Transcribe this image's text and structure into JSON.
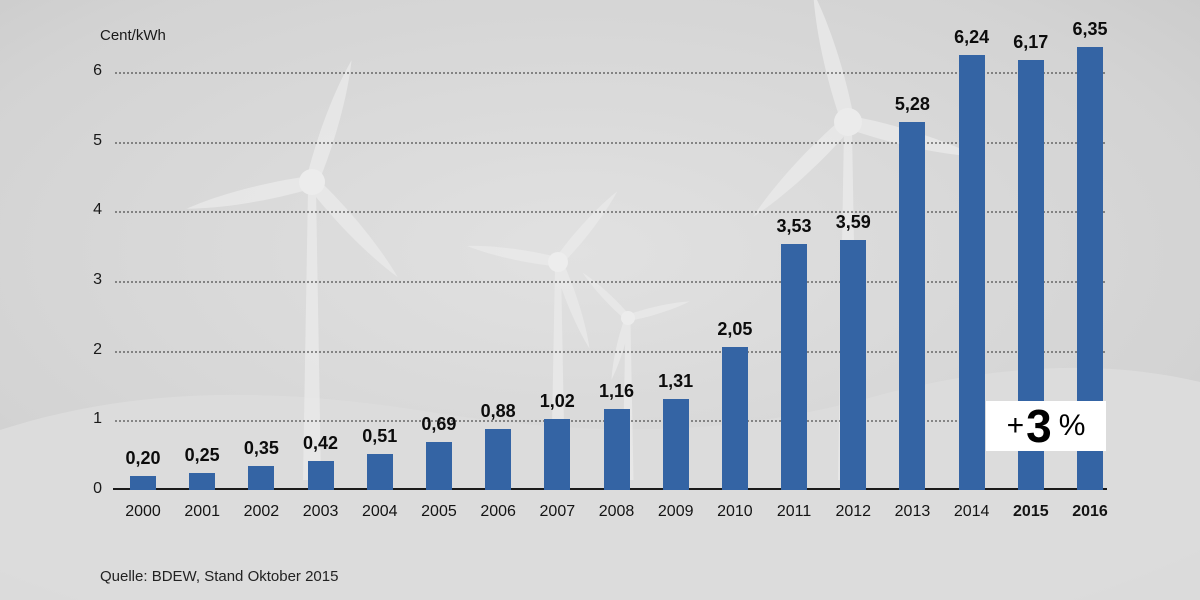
{
  "chart_data": {
    "type": "bar",
    "title": "",
    "ylabel": "Cent/kWh",
    "xlabel": "",
    "categories": [
      "2000",
      "2001",
      "2002",
      "2003",
      "2004",
      "2005",
      "2006",
      "2007",
      "2008",
      "2009",
      "2010",
      "2011",
      "2012",
      "2013",
      "2014",
      "2015",
      "2016"
    ],
    "values": [
      0.2,
      0.25,
      0.35,
      0.42,
      0.51,
      0.69,
      0.88,
      1.02,
      1.16,
      1.31,
      2.05,
      3.53,
      3.59,
      5.28,
      6.24,
      6.17,
      6.35
    ],
    "value_labels": [
      "0,20",
      "0,25",
      "0,35",
      "0,42",
      "0,51",
      "0,69",
      "0,88",
      "1,02",
      "1,16",
      "1,31",
      "2,05",
      "3,53",
      "3,59",
      "5,28",
      "6,24",
      "6,17",
      "6,35"
    ],
    "bold_categories": [
      "2015",
      "2016"
    ],
    "yticks": [
      0,
      1,
      2,
      3,
      4,
      5,
      6
    ],
    "ylim": [
      0,
      6.5
    ],
    "grid": "horizontal-dotted",
    "legend": "none",
    "bar_color": "#3464a4"
  },
  "annotation": {
    "plus": "+",
    "number": "3",
    "percent": "%"
  },
  "source_note": "Quelle: BDEW, Stand Oktober 2015",
  "colors": {
    "bar": "#3464a4",
    "badge_background": "#ffffff",
    "text": "#141414",
    "background": "#d3d3d3"
  }
}
